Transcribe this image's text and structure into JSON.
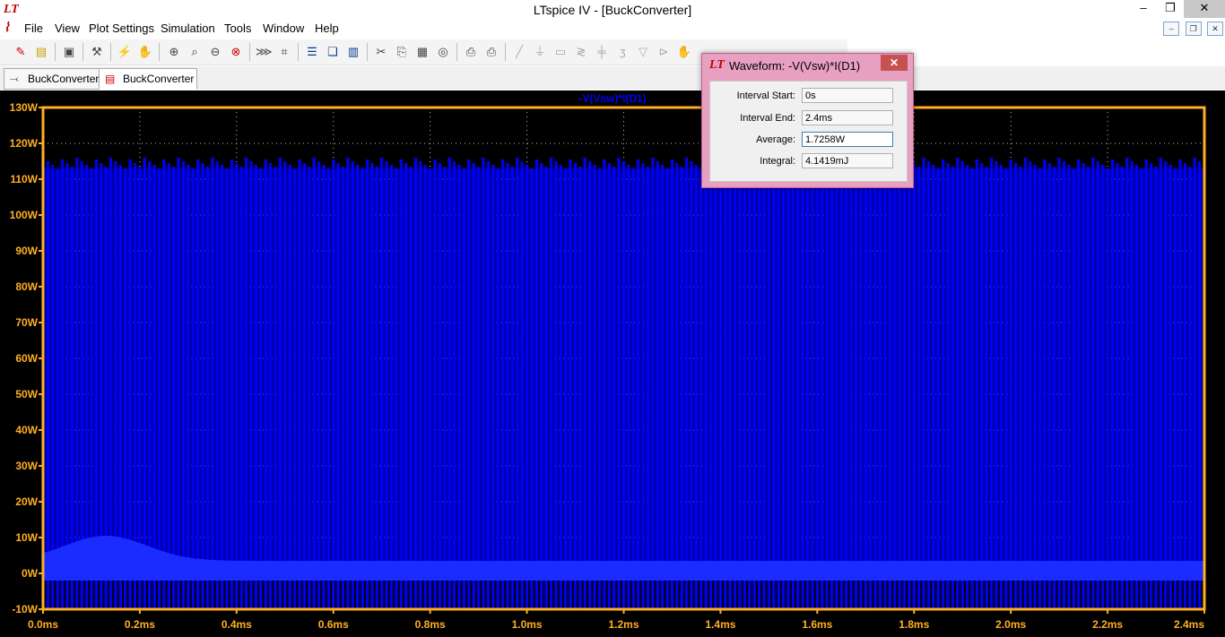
{
  "window": {
    "title": "LTspice IV - [BuckConverter]",
    "app_icon": "LT",
    "minimize": "–",
    "restore": "❐",
    "close": "✕"
  },
  "menu": [
    {
      "label": "File"
    },
    {
      "label": "View"
    },
    {
      "label": "Plot Settings"
    },
    {
      "label": "Simulation"
    },
    {
      "label": "Tools"
    },
    {
      "label": "Window"
    },
    {
      "label": "Help"
    }
  ],
  "mdi": {
    "minimize": "–",
    "restore": "❐",
    "close": "✕"
  },
  "tabs": [
    {
      "label": "BuckConverter",
      "icon": "schematic-icon"
    },
    {
      "label": "BuckConverter",
      "icon": "waveform-icon"
    }
  ],
  "plot": {
    "trace_label": "-V(Vsw)*I(D1)",
    "trace_color": "#0000ff",
    "axis_color": "#ffb020",
    "background": "#000000"
  },
  "chart_data": {
    "type": "line",
    "title": "-V(Vsw)*I(D1)",
    "xlabel": "",
    "ylabel": "",
    "xlim": [
      0,
      2.4
    ],
    "ylim": [
      -10,
      130
    ],
    "x_ticks": [
      "0.0ms",
      "0.2ms",
      "0.4ms",
      "0.6ms",
      "0.8ms",
      "1.0ms",
      "1.2ms",
      "1.4ms",
      "1.6ms",
      "1.8ms",
      "2.0ms",
      "2.2ms",
      "2.4ms"
    ],
    "y_ticks": [
      "-10W",
      "0W",
      "10W",
      "20W",
      "30W",
      "40W",
      "50W",
      "60W",
      "70W",
      "80W",
      "90W",
      "100W",
      "110W",
      "120W",
      "130W"
    ],
    "grid": true,
    "series": [
      {
        "name": "-V(Vsw)*I(D1)",
        "peak_level": 116,
        "base_level": 0,
        "min_level": -10,
        "x_start": 0,
        "x_end": 2.4
      }
    ]
  },
  "dialog": {
    "icon": "LT",
    "title": "Waveform: -V(Vsw)*I(D1)",
    "close": "✕",
    "fields": [
      {
        "label": "Interval Start:",
        "value": "0s"
      },
      {
        "label": "Interval End:",
        "value": "2.4ms"
      },
      {
        "label": "Average:",
        "value": "1.7258W"
      },
      {
        "label": "Integral:",
        "value": "4.1419mJ"
      }
    ]
  }
}
